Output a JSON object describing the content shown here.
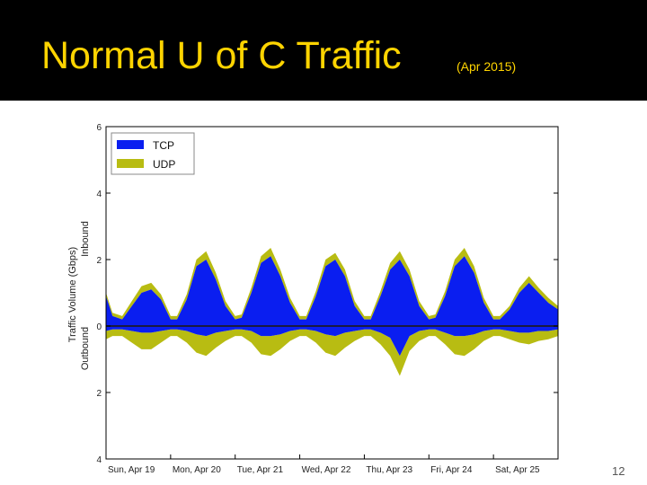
{
  "slide": {
    "title": "Normal U of C Traffic",
    "subtitle": "(Apr 2015)",
    "page_number": "12"
  },
  "colors": {
    "title_bg": "#000000",
    "title_text": "#ffd400",
    "tcp": "#0a1ef0",
    "udp": "#b8bc12"
  },
  "chart_data": {
    "type": "area",
    "title": "",
    "ylabel": "Traffic Volume (Gbps)",
    "ylabel_inbound": "Inbound",
    "ylabel_outbound": "Outbound",
    "xlabel": "",
    "ylim": [
      -4,
      6
    ],
    "y_ticks": [
      {
        "value": 6,
        "label": "6"
      },
      {
        "value": 4,
        "label": "4"
      },
      {
        "value": 2,
        "label": "2"
      },
      {
        "value": 0,
        "label": "0"
      },
      {
        "value": -2,
        "label": "2"
      },
      {
        "value": -4,
        "label": "4"
      }
    ],
    "x_ticks": [
      "Sun, Apr 19",
      "Mon, Apr 20",
      "Tue, Apr 21",
      "Wed, Apr 22",
      "Thu, Apr 23",
      "Fri, Apr 24",
      "Sat, Apr 25"
    ],
    "legend": {
      "position": "top-left",
      "entries": [
        {
          "name": "TCP",
          "color": "#0a1ef0"
        },
        {
          "name": "UDP",
          "color": "#b8bc12"
        }
      ]
    },
    "series": [
      {
        "name": "TCP",
        "direction": "inbound",
        "x": [
          0,
          0.1,
          0.25,
          0.4,
          0.55,
          0.7,
          0.85,
          1,
          1.1,
          1.25,
          1.4,
          1.55,
          1.7,
          1.85,
          2,
          2.1,
          2.25,
          2.4,
          2.55,
          2.7,
          2.85,
          3,
          3.1,
          3.25,
          3.4,
          3.55,
          3.7,
          3.85,
          4,
          4.1,
          4.25,
          4.4,
          4.55,
          4.7,
          4.85,
          5,
          5.1,
          5.25,
          5.4,
          5.55,
          5.7,
          5.85,
          6,
          6.1,
          6.25,
          6.4,
          6.55,
          6.7,
          6.85,
          7
        ],
        "values": [
          0.9,
          0.3,
          0.2,
          0.6,
          1.0,
          1.1,
          0.8,
          0.2,
          0.2,
          0.8,
          1.8,
          2.0,
          1.4,
          0.6,
          0.2,
          0.25,
          1.0,
          1.9,
          2.1,
          1.5,
          0.7,
          0.2,
          0.2,
          0.9,
          1.8,
          2.0,
          1.5,
          0.6,
          0.2,
          0.2,
          0.9,
          1.7,
          2.0,
          1.5,
          0.6,
          0.2,
          0.25,
          0.9,
          1.8,
          2.1,
          1.6,
          0.7,
          0.2,
          0.2,
          0.5,
          1.0,
          1.3,
          1.0,
          0.7,
          0.5
        ]
      },
      {
        "name": "UDP",
        "direction": "inbound",
        "x": [
          0,
          0.1,
          0.25,
          0.4,
          0.55,
          0.7,
          0.85,
          1,
          1.1,
          1.25,
          1.4,
          1.55,
          1.7,
          1.85,
          2,
          2.1,
          2.25,
          2.4,
          2.55,
          2.7,
          2.85,
          3,
          3.1,
          3.25,
          3.4,
          3.55,
          3.7,
          3.85,
          4,
          4.1,
          4.25,
          4.4,
          4.55,
          4.7,
          4.85,
          5,
          5.1,
          5.25,
          5.4,
          5.55,
          5.7,
          5.85,
          6,
          6.1,
          6.25,
          6.4,
          6.55,
          6.7,
          6.85,
          7
        ],
        "values": [
          0.1,
          0.1,
          0.1,
          0.15,
          0.2,
          0.2,
          0.15,
          0.1,
          0.1,
          0.15,
          0.2,
          0.25,
          0.2,
          0.15,
          0.1,
          0.1,
          0.15,
          0.2,
          0.25,
          0.2,
          0.15,
          0.1,
          0.1,
          0.15,
          0.2,
          0.2,
          0.2,
          0.15,
          0.1,
          0.1,
          0.15,
          0.2,
          0.25,
          0.2,
          0.15,
          0.1,
          0.1,
          0.15,
          0.2,
          0.25,
          0.2,
          0.15,
          0.1,
          0.1,
          0.1,
          0.15,
          0.2,
          0.15,
          0.15,
          0.1
        ]
      },
      {
        "name": "TCP",
        "direction": "outbound",
        "x": [
          0,
          0.1,
          0.25,
          0.4,
          0.55,
          0.7,
          0.85,
          1,
          1.1,
          1.25,
          1.4,
          1.55,
          1.7,
          1.85,
          2,
          2.1,
          2.25,
          2.4,
          2.55,
          2.7,
          2.85,
          3,
          3.1,
          3.25,
          3.4,
          3.55,
          3.7,
          3.85,
          4,
          4.1,
          4.25,
          4.4,
          4.55,
          4.7,
          4.85,
          5,
          5.1,
          5.25,
          5.4,
          5.55,
          5.7,
          5.85,
          6,
          6.1,
          6.25,
          6.4,
          6.55,
          6.7,
          6.85,
          7
        ],
        "values": [
          -0.15,
          -0.1,
          -0.1,
          -0.15,
          -0.2,
          -0.2,
          -0.15,
          -0.1,
          -0.1,
          -0.15,
          -0.25,
          -0.3,
          -0.2,
          -0.15,
          -0.1,
          -0.1,
          -0.15,
          -0.3,
          -0.3,
          -0.25,
          -0.15,
          -0.1,
          -0.1,
          -0.15,
          -0.25,
          -0.3,
          -0.2,
          -0.15,
          -0.1,
          -0.1,
          -0.2,
          -0.35,
          -0.9,
          -0.3,
          -0.15,
          -0.1,
          -0.1,
          -0.2,
          -0.3,
          -0.3,
          -0.25,
          -0.15,
          -0.1,
          -0.1,
          -0.15,
          -0.2,
          -0.2,
          -0.15,
          -0.15,
          -0.1
        ]
      },
      {
        "name": "UDP",
        "direction": "outbound",
        "x": [
          0,
          0.1,
          0.25,
          0.4,
          0.55,
          0.7,
          0.85,
          1,
          1.1,
          1.25,
          1.4,
          1.55,
          1.7,
          1.85,
          2,
          2.1,
          2.25,
          2.4,
          2.55,
          2.7,
          2.85,
          3,
          3.1,
          3.25,
          3.4,
          3.55,
          3.7,
          3.85,
          4,
          4.1,
          4.25,
          4.4,
          4.55,
          4.7,
          4.85,
          5,
          5.1,
          5.25,
          5.4,
          5.55,
          5.7,
          5.85,
          6,
          6.1,
          6.25,
          6.4,
          6.55,
          6.7,
          6.85,
          7
        ],
        "values": [
          -0.25,
          -0.2,
          -0.2,
          -0.35,
          -0.5,
          -0.5,
          -0.35,
          -0.2,
          -0.2,
          -0.35,
          -0.55,
          -0.6,
          -0.45,
          -0.3,
          -0.2,
          -0.2,
          -0.35,
          -0.55,
          -0.6,
          -0.45,
          -0.3,
          -0.2,
          -0.2,
          -0.35,
          -0.55,
          -0.6,
          -0.45,
          -0.3,
          -0.2,
          -0.2,
          -0.35,
          -0.55,
          -0.6,
          -0.45,
          -0.3,
          -0.2,
          -0.2,
          -0.35,
          -0.55,
          -0.6,
          -0.45,
          -0.3,
          -0.2,
          -0.2,
          -0.25,
          -0.3,
          -0.35,
          -0.3,
          -0.25,
          -0.2
        ]
      }
    ],
    "grid": false
  }
}
